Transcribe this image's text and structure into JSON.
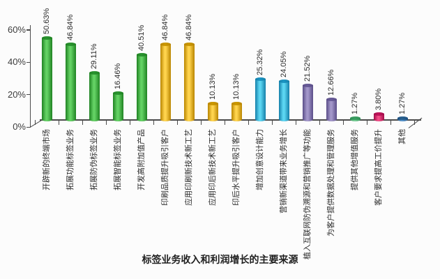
{
  "chart_data": {
    "type": "bar",
    "title": "标签业务收入和利润增长的主要来源",
    "ylim": [
      0,
      60
    ],
    "grid": false,
    "legend_position": "none",
    "value_suffix": "%",
    "yticks": [
      {
        "value": 0,
        "label": "0%"
      },
      {
        "value": 20,
        "label": "20%"
      },
      {
        "value": 40,
        "label": "40%"
      },
      {
        "value": 60,
        "label": "60%"
      }
    ],
    "items": [
      {
        "category": "开辟新的终端市场",
        "value": 50.63,
        "label": "50.63%",
        "color": "green"
      },
      {
        "category": "拓展功能标签业务",
        "value": 46.84,
        "label": "46.84%",
        "color": "green"
      },
      {
        "category": "拓展防伪标签业务",
        "value": 29.11,
        "label": "29.11%",
        "color": "green"
      },
      {
        "category": "拓展智能标签业务",
        "value": 16.46,
        "label": "16.46%",
        "color": "green"
      },
      {
        "category": "开发高附加值产品",
        "value": 40.51,
        "label": "40.51%",
        "color": "green"
      },
      {
        "category": "印刷品质提升吸引客户",
        "value": 46.84,
        "label": "46.84%",
        "color": "gold"
      },
      {
        "category": "应用印刷新技术新工艺",
        "value": 46.84,
        "label": "46.84%",
        "color": "gold"
      },
      {
        "category": "应用印后新技术新工艺",
        "value": 10.13,
        "label": "10.13%",
        "color": "gold"
      },
      {
        "category": "印后水平提升吸引客户",
        "value": 10.13,
        "label": "10.13%",
        "color": "gold"
      },
      {
        "category": "增加创意设计能力",
        "value": 25.32,
        "label": "25.32%",
        "color": "cyan"
      },
      {
        "category": "营销新渠道带来业务增长",
        "value": 24.05,
        "label": "24.05%",
        "color": "cyan"
      },
      {
        "category": "植入互联网防伪溯源和营销推广等功能",
        "value": 21.52,
        "label": "21.52%",
        "color": "purple"
      },
      {
        "category": "为客户提供数据处理和管理服务",
        "value": 12.66,
        "label": "12.66%",
        "color": "purple"
      },
      {
        "category": "提供其他增值服务",
        "value": 1.27,
        "label": "1.27%",
        "color": "seagreen"
      },
      {
        "category": "客户要求提高工价提升",
        "value": 3.8,
        "label": "3.80%",
        "color": "crimson"
      },
      {
        "category": "其他",
        "value": 1.27,
        "label": "1.27%",
        "color": "steelblue"
      }
    ],
    "palette": {
      "green": {
        "edge": "#1f8222",
        "mid": "#63d163",
        "top": "#2a9430"
      },
      "gold": {
        "edge": "#b98500",
        "mid": "#ffd44d",
        "top": "#cc9900"
      },
      "cyan": {
        "edge": "#147fa9",
        "mid": "#5cd6f2",
        "top": "#1b96c4"
      },
      "purple": {
        "edge": "#5a4d88",
        "mid": "#a296c9",
        "top": "#695c99"
      },
      "seagreen": {
        "edge": "#2f8f55",
        "mid": "#74cd92",
        "top": "#3d9f63"
      },
      "crimson": {
        "edge": "#a30c49",
        "mid": "#f24c86",
        "top": "#c2145c"
      },
      "steelblue": {
        "edge": "#1d4f80",
        "mid": "#5493cc",
        "top": "#28618f"
      }
    },
    "axis_color": "#4a4a4a"
  }
}
